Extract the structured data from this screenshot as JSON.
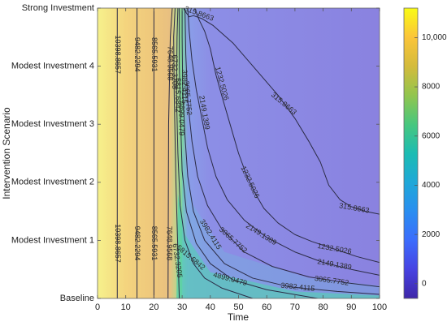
{
  "chart_data": {
    "type": "contour",
    "xlabel": "Time",
    "ylabel": "Intervention Scenario",
    "xlim": [
      0,
      100
    ],
    "x_ticks": [
      0,
      10,
      20,
      30,
      40,
      50,
      60,
      70,
      80,
      90,
      100
    ],
    "y_categories": [
      "Baseline",
      "Modest Investment 1",
      "Modest Investment 2",
      "Modest Investment 3",
      "Modest Investment 4",
      "Strong Investment"
    ],
    "colorbar": {
      "range": [
        -600,
        11200
      ],
      "ticks": [
        0,
        2000,
        4000,
        6000,
        8000,
        10000
      ],
      "tick_labels": [
        "0",
        "2000",
        "4000",
        "6000",
        "8000",
        "10,000"
      ],
      "colormap": "parula"
    },
    "contour_levels": [
      315.8663,
      1232.5026,
      2149.1389,
      3065.7752,
      3982.4115,
      4899.0479,
      5815.6842,
      6732.3205,
      7648.9568,
      8565.5931,
      9482.2294,
      10398.8657
    ],
    "contour_label_text": [
      "315.8663",
      "1232.5026",
      "2149.1389",
      "3065.7752",
      "3982.4115",
      "4899.0479",
      "5815.6842",
      "6732.3205",
      "7648.9568",
      "8565.5931",
      "9482.2294",
      "10398.8657"
    ],
    "contour_lines": [
      {
        "level": 10398.8657,
        "points": [
          [
            7,
            0
          ],
          [
            7,
            5
          ]
        ]
      },
      {
        "level": 9482.2294,
        "points": [
          [
            14,
            0
          ],
          [
            14,
            5
          ]
        ]
      },
      {
        "level": 8565.5931,
        "points": [
          [
            20,
            0
          ],
          [
            20,
            5
          ]
        ]
      },
      {
        "level": 7648.9568,
        "points": [
          [
            25,
            0
          ],
          [
            25.2,
            3
          ],
          [
            25.8,
            4.5
          ],
          [
            26.5,
            5
          ]
        ]
      },
      {
        "level": 6732.3205,
        "points": [
          [
            29,
            0
          ],
          [
            28.5,
            0.8
          ],
          [
            27.8,
            2
          ],
          [
            27.2,
            3.5
          ],
          [
            27,
            4.5
          ],
          [
            27.5,
            5
          ]
        ]
      },
      {
        "level": 5815.6842,
        "points": [
          [
            55,
            0
          ],
          [
            44,
            0.18
          ],
          [
            38,
            0.35
          ],
          [
            34,
            0.6
          ],
          [
            31,
            1
          ],
          [
            29.3,
            1.6
          ],
          [
            28.5,
            2.5
          ],
          [
            28,
            3.5
          ],
          [
            28.2,
            4.5
          ],
          [
            28.5,
            5
          ]
        ]
      },
      {
        "level": 4899.0479,
        "points": [
          [
            78,
            0
          ],
          [
            60,
            0.15
          ],
          [
            48,
            0.32
          ],
          [
            40,
            0.6
          ],
          [
            35,
            0.95
          ],
          [
            31.5,
            1.5
          ],
          [
            30,
            2.2
          ],
          [
            29.5,
            3
          ],
          [
            29,
            4
          ],
          [
            29,
            5
          ]
        ]
      },
      {
        "level": 3982.4115,
        "points": [
          [
            100,
            0.07
          ],
          [
            85,
            0.12
          ],
          [
            68,
            0.2
          ],
          [
            55,
            0.35
          ],
          [
            45,
            0.6
          ],
          [
            38,
            1
          ],
          [
            34,
            1.5
          ],
          [
            32,
            2.1
          ],
          [
            31,
            2.8
          ],
          [
            30.2,
            3.6
          ],
          [
            30,
            4.5
          ],
          [
            30,
            5
          ]
        ]
      },
      {
        "level": 3065.7752,
        "points": [
          [
            100,
            0.2
          ],
          [
            88,
            0.27
          ],
          [
            75,
            0.37
          ],
          [
            62,
            0.55
          ],
          [
            52,
            0.8
          ],
          [
            44,
            1.2
          ],
          [
            39,
            1.6
          ],
          [
            35.5,
            2.1
          ],
          [
            33.5,
            2.7
          ],
          [
            32,
            3.4
          ],
          [
            31.3,
            4.2
          ],
          [
            31,
            5
          ]
        ]
      },
      {
        "level": 2149.1389,
        "points": [
          [
            100,
            0.4
          ],
          [
            90,
            0.5
          ],
          [
            80,
            0.62
          ],
          [
            70,
            0.8
          ],
          [
            60,
            1.05
          ],
          [
            52,
            1.35
          ],
          [
            46,
            1.7
          ],
          [
            42,
            2.1
          ],
          [
            39,
            2.6
          ],
          [
            37,
            3.1
          ],
          [
            35,
            3.6
          ],
          [
            33.5,
            4.1
          ],
          [
            32.5,
            4.6
          ],
          [
            32,
            5
          ]
        ]
      },
      {
        "level": 1232.5026,
        "points": [
          [
            100,
            0.62
          ],
          [
            92,
            0.72
          ],
          [
            84,
            0.85
          ],
          [
            76,
            0.98
          ],
          [
            70,
            1.1
          ],
          [
            64,
            1.3
          ],
          [
            59,
            1.55
          ],
          [
            56,
            1.8
          ],
          [
            53,
            2.1
          ],
          [
            50,
            2.5
          ],
          [
            47,
            3
          ],
          [
            44,
            3.5
          ],
          [
            42,
            3.85
          ],
          [
            40,
            4.3
          ],
          [
            38,
            4.6
          ],
          [
            36,
            4.8
          ],
          [
            34.5,
            5
          ]
        ]
      },
      {
        "level": 315.8663,
        "points": [
          [
            100,
            1.45
          ],
          [
            95,
            1.5
          ],
          [
            90,
            1.58
          ],
          [
            86,
            1.7
          ],
          [
            82,
            1.95
          ],
          [
            79,
            2.35
          ],
          [
            75,
            2.7
          ],
          [
            70,
            3.1
          ],
          [
            64,
            3.5
          ],
          [
            56,
            3.95
          ],
          [
            48,
            4.4
          ],
          [
            41,
            4.7
          ],
          [
            37,
            4.82
          ],
          [
            34,
            4.87
          ],
          [
            32.5,
            4.85
          ],
          [
            31,
            4.95
          ],
          [
            30.5,
            5
          ]
        ]
      }
    ],
    "label_placements": [
      {
        "text": "10398.8657",
        "x": 7,
        "y": 4.2,
        "angle": 90
      },
      {
        "text": "9482.2294",
        "x": 14,
        "y": 4.2,
        "angle": 90
      },
      {
        "text": "8565.5931",
        "x": 20,
        "y": 4.2,
        "angle": 90
      },
      {
        "text": "7648.9568",
        "x": 25.6,
        "y": 4.05,
        "angle": 90
      },
      {
        "text": "6732.3205",
        "x": 27.2,
        "y": 3.9,
        "angle": 90
      },
      {
        "text": "5815.6842",
        "x": 28.3,
        "y": 3.5,
        "angle": 90
      },
      {
        "text": "4899.0479",
        "x": 29.7,
        "y": 3.1,
        "angle": 90
      },
      {
        "text": "3982.4115",
        "x": 30.6,
        "y": 3.65,
        "angle": 90
      },
      {
        "text": "3065.7752",
        "x": 31.9,
        "y": 3.45,
        "angle": 85
      },
      {
        "text": "2149.1389",
        "x": 37.8,
        "y": 3.2,
        "angle": 80
      },
      {
        "text": "1232.5026",
        "x": 44,
        "y": 3.7,
        "angle": 75
      },
      {
        "text": "315.8663",
        "x": 36,
        "y": 4.9,
        "angle": 20
      },
      {
        "text": "10398.8657",
        "x": 7,
        "y": 0.95,
        "angle": 90
      },
      {
        "text": "9482.2294",
        "x": 14,
        "y": 0.95,
        "angle": 90
      },
      {
        "text": "8565.5931",
        "x": 20,
        "y": 0.95,
        "angle": 90
      },
      {
        "text": "7648.9568",
        "x": 25.3,
        "y": 0.95,
        "angle": 90
      },
      {
        "text": "6732.3205",
        "x": 28.2,
        "y": 0.65,
        "angle": 82
      },
      {
        "text": "5815.6842",
        "x": 33,
        "y": 0.7,
        "angle": 40
      },
      {
        "text": "4899.0479",
        "x": 47,
        "y": 0.33,
        "angle": 15
      },
      {
        "text": "3982.4115",
        "x": 71,
        "y": 0.19,
        "angle": 6
      },
      {
        "text": "3065.7752",
        "x": 83,
        "y": 0.3,
        "angle": 8
      },
      {
        "text": "2149.1389",
        "x": 84,
        "y": 0.58,
        "angle": 10
      },
      {
        "text": "1232.5026",
        "x": 84,
        "y": 0.85,
        "angle": 10
      },
      {
        "text": "2149.1389",
        "x": 58,
        "y": 1.1,
        "angle": 32
      },
      {
        "text": "3065.7752",
        "x": 48,
        "y": 1.0,
        "angle": 42
      },
      {
        "text": "3982.4115",
        "x": 40,
        "y": 1.1,
        "angle": 58
      },
      {
        "text": "1232.5026",
        "x": 54,
        "y": 2.0,
        "angle": 65
      },
      {
        "text": "315.8663",
        "x": 91,
        "y": 1.55,
        "angle": 10
      },
      {
        "text": "315.8663",
        "x": 66,
        "y": 3.35,
        "angle": 40
      }
    ]
  }
}
